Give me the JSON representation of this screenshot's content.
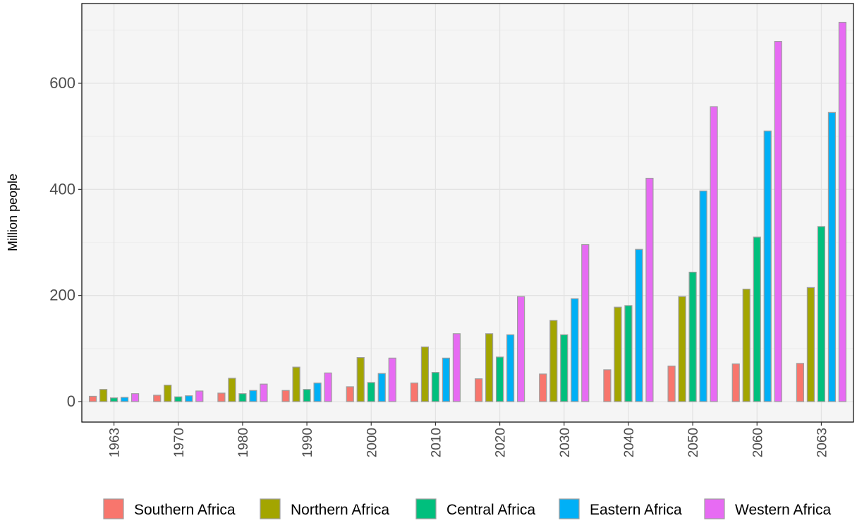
{
  "chart_data": {
    "type": "bar",
    "title": "",
    "xlabel": "",
    "ylabel": "Million people",
    "ylim": [
      -36,
      730
    ],
    "yticks": [
      0,
      200,
      400,
      600
    ],
    "grid": true,
    "legend_position": "bottom",
    "categories": [
      "1963",
      "1970",
      "1980",
      "1990",
      "2000",
      "2010",
      "2020",
      "2030",
      "2040",
      "2050",
      "2060",
      "2063"
    ],
    "series": [
      {
        "name": "Southern Africa",
        "color": "#F8766D",
        "values": [
          10,
          12,
          16,
          21,
          28,
          35,
          43,
          52,
          60,
          67,
          71,
          72
        ]
      },
      {
        "name": "Northern Africa",
        "color": "#A3A500",
        "values": [
          23,
          31,
          44,
          65,
          83,
          103,
          128,
          153,
          178,
          198,
          212,
          215
        ]
      },
      {
        "name": "Central Africa",
        "color": "#00BF7D",
        "values": [
          7,
          9,
          15,
          23,
          36,
          55,
          84,
          126,
          181,
          244,
          310,
          330
        ]
      },
      {
        "name": "Eastern Africa",
        "color": "#00B0F6",
        "values": [
          8,
          11,
          21,
          35,
          53,
          82,
          126,
          194,
          287,
          397,
          510,
          545
        ]
      },
      {
        "name": "Western Africa",
        "color": "#E76BF3",
        "values": [
          15,
          20,
          33,
          54,
          82,
          128,
          198,
          296,
          421,
          556,
          679,
          715
        ]
      }
    ]
  }
}
